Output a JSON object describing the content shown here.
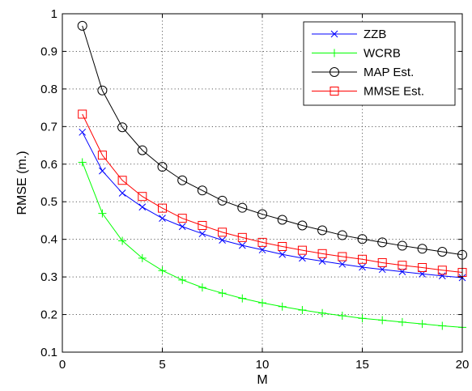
{
  "chart_data": {
    "type": "line",
    "title": "",
    "xlabel": "M",
    "ylabel": "RMSE (m.)",
    "xlim": [
      0,
      20
    ],
    "ylim": [
      0.1,
      1
    ],
    "xticks": [
      0,
      5,
      10,
      15,
      20
    ],
    "xtick_labels": [
      "0",
      "5",
      "10",
      "15",
      "20"
    ],
    "yticks": [
      0.1,
      0.2,
      0.3,
      0.4,
      0.5,
      0.6,
      0.7,
      0.8,
      0.9,
      1
    ],
    "ytick_labels": [
      "0.1",
      "0.2",
      "0.3",
      "0.4",
      "0.5",
      "0.6",
      "0.7",
      "0.8",
      "0.9",
      "1"
    ],
    "grid": true,
    "legend_position": "top-right",
    "x": [
      1,
      2,
      3,
      4,
      5,
      6,
      7,
      8,
      9,
      10,
      11,
      12,
      13,
      14,
      15,
      16,
      17,
      18,
      19,
      20
    ],
    "series": [
      {
        "name": "ZZB",
        "color": "#0000ff",
        "marker": "x",
        "values": [
          0.685,
          0.582,
          0.523,
          0.486,
          0.456,
          0.434,
          0.415,
          0.398,
          0.384,
          0.372,
          0.36,
          0.35,
          0.342,
          0.334,
          0.326,
          0.32,
          0.314,
          0.308,
          0.303,
          0.298
        ]
      },
      {
        "name": "WCRB",
        "color": "#00ff00",
        "marker": "+",
        "values": [
          0.605,
          0.469,
          0.396,
          0.35,
          0.317,
          0.292,
          0.272,
          0.257,
          0.243,
          0.231,
          0.221,
          0.212,
          0.204,
          0.197,
          0.19,
          0.185,
          0.18,
          0.175,
          0.17,
          0.166
        ]
      },
      {
        "name": "MAP Est.",
        "color": "#000000",
        "marker": "o",
        "values": [
          0.968,
          0.796,
          0.698,
          0.637,
          0.593,
          0.557,
          0.53,
          0.503,
          0.484,
          0.467,
          0.452,
          0.437,
          0.424,
          0.411,
          0.401,
          0.392,
          0.383,
          0.375,
          0.367,
          0.359
        ]
      },
      {
        "name": "MMSE Est.",
        "color": "#ff0000",
        "marker": "s",
        "values": [
          0.733,
          0.624,
          0.557,
          0.514,
          0.483,
          0.456,
          0.437,
          0.419,
          0.405,
          0.392,
          0.381,
          0.371,
          0.362,
          0.354,
          0.347,
          0.338,
          0.331,
          0.325,
          0.318,
          0.312
        ]
      }
    ]
  }
}
